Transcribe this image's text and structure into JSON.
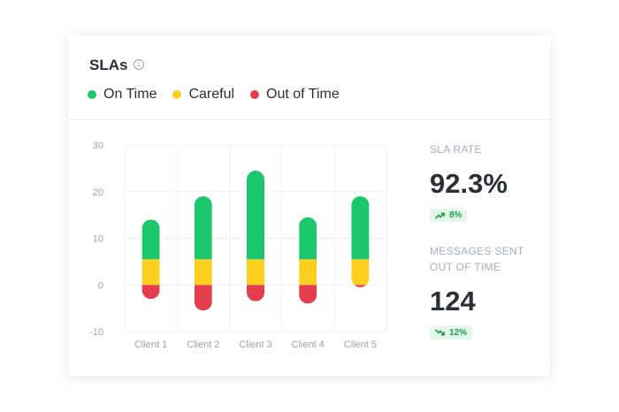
{
  "card": {
    "title": "SLAs",
    "info_icon": "info-icon",
    "legend": [
      {
        "label": "On Time",
        "color": "#1cc66c"
      },
      {
        "label": "Careful",
        "color": "#fdd020"
      },
      {
        "label": "Out of Time",
        "color": "#e43d4e"
      }
    ]
  },
  "stats": {
    "sla_rate": {
      "label": "SLA RATE",
      "value": "92.3%",
      "change": "8%",
      "trend_icon": "trend-up-icon"
    },
    "messages_out": {
      "label_line1": "MESSAGES SENT",
      "label_line2": "OUT OF TIME",
      "value": "124",
      "change": "12%",
      "trend_icon": "trend-down-icon"
    }
  },
  "chart_data": {
    "type": "bar",
    "stacked": true,
    "categories": [
      "Client 1",
      "Client 2",
      "Client 3",
      "Client 4",
      "Client 5"
    ],
    "ylim": [
      -10,
      30
    ],
    "yticks": [
      -10,
      0,
      10,
      20,
      30
    ],
    "grid": true,
    "series": [
      {
        "name": "On Time",
        "color": "#1cc66c",
        "values": [
          8.5,
          13.5,
          19,
          9,
          13.5
        ]
      },
      {
        "name": "Careful",
        "color": "#fdd020",
        "values": [
          5.5,
          5.5,
          5.5,
          5.5,
          5.5
        ]
      },
      {
        "name": "Out of Time",
        "color": "#e43d4e",
        "values": [
          -3,
          -5.5,
          -3.5,
          -4,
          -0.5
        ]
      }
    ]
  }
}
